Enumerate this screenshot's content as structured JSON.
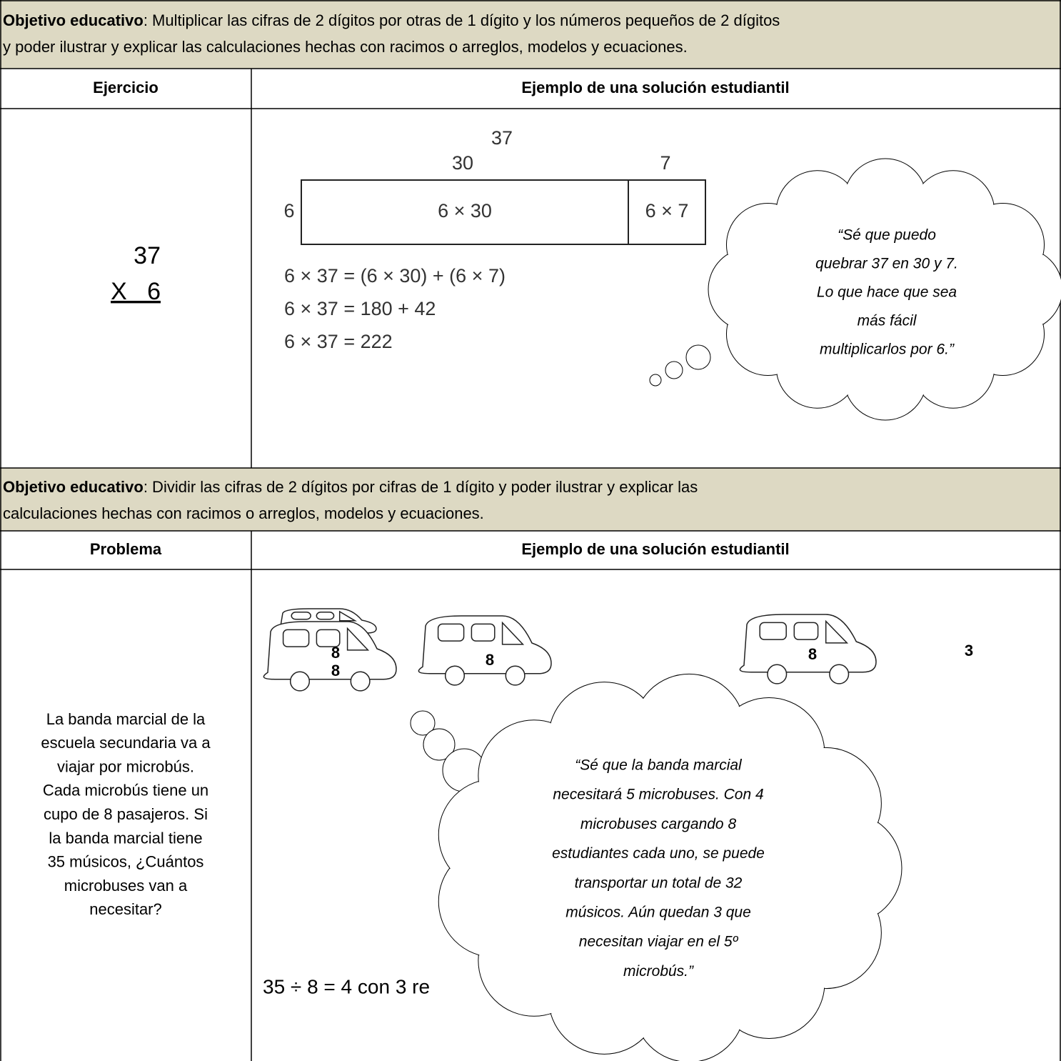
{
  "sections": [
    {
      "objective": {
        "label": "Objetivo educativo",
        "lines": [
          ": Multiplicar las cifras de 2 dígitos por otras de 1 dígito y los números pequeños de 2 dígitos",
          "y poder ilustrar y explicar las calculaciones hechas con racimos o arreglos, modelos y ecuaciones."
        ]
      },
      "headers": [
        "Ejercicio",
        "Ejemplo de una solución estudiantil"
      ],
      "exercise": [
        "37",
        "X   6"
      ],
      "diagram": {
        "total": "37",
        "parts": [
          "30",
          "7"
        ],
        "factor": "6",
        "cells": [
          "6 × 30",
          "6 × 7"
        ]
      },
      "equations": [
        "6 × 37 = (6 × 30) + (6 × 7)",
        "6 × 37 = 180 + 42",
        "6 × 37 = 222"
      ],
      "bubble": [
        "“Sé que puedo",
        "quebrar 37 en 30  y 7.",
        "Lo que hace que sea",
        "más fácil",
        "multiplicarlos por 6.”"
      ]
    },
    {
      "objective": {
        "label": "Objetivo educativo",
        "lines": [
          ": Dividir las cifras de 2 dígitos por cifras de 1 dígito y poder ilustrar y explicar las",
          "calculaciones hechas con racimos o arreglos, modelos y ecuaciones."
        ]
      },
      "headers": [
        "Problema",
        "Ejemplo de una solución estudiantil"
      ],
      "problem": [
        "La banda marcial de la",
        "escuela secundaria va a",
        "viajar por microbús.",
        "Cada microbús tiene un",
        "cupo de 8 pasajeros.  Si",
        "la banda marcial tiene",
        "35 músicos, ¿Cuántos",
        "microbuses van a",
        "necesitar?"
      ],
      "bus_labels": [
        "8",
        "8",
        "8",
        "8"
      ],
      "remainder": "3",
      "equation": "35 ÷ 8 = 4 con 3 re",
      "bubble": [
        "“Sé que la banda marcial",
        "necesitará 5 microbuses. Con 4",
        "microbuses cargando 8",
        "estudiantes cada uno, se puede",
        "transportar un total de 32",
        "músicos. Aún quedan 3 que",
        "necesitan viajar en el 5º",
        "microbús.”"
      ]
    }
  ]
}
